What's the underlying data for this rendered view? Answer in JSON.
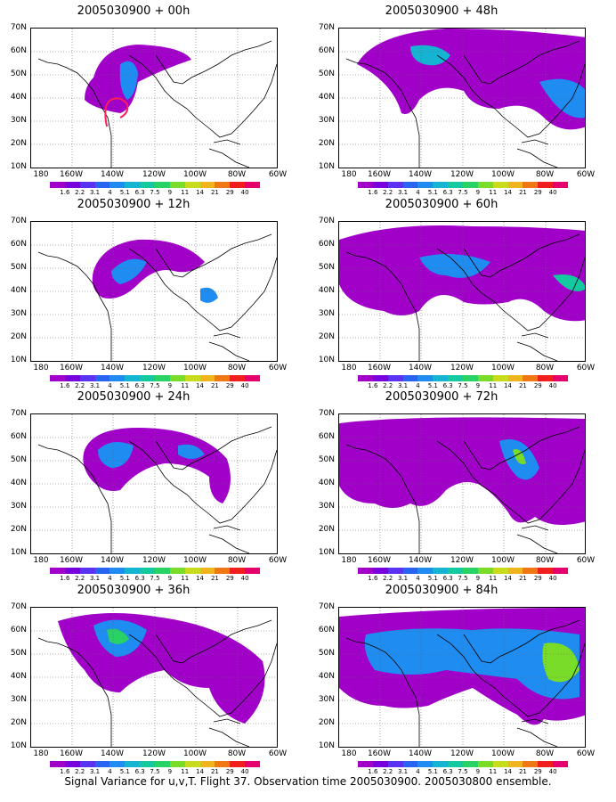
{
  "panels": [
    {
      "title": "2005030900 + 00h"
    },
    {
      "title": "2005030900 + 48h"
    },
    {
      "title": "2005030900 + 12h"
    },
    {
      "title": "2005030900 + 60h"
    },
    {
      "title": "2005030900 + 24h"
    },
    {
      "title": "2005030900 + 72h"
    },
    {
      "title": "2005030900 + 36h"
    },
    {
      "title": "2005030900 + 84h"
    }
  ],
  "lat_labels": [
    "70N",
    "60N",
    "50N",
    "40N",
    "30N",
    "20N",
    "10N"
  ],
  "lon_labels": [
    "180",
    "160W",
    "140W",
    "120W",
    "100W",
    "80W",
    "60W"
  ],
  "colorbar": {
    "labels": [
      "1.6",
      "2.2",
      "3.1",
      "4",
      "5.1",
      "6.3",
      "7.5",
      "9",
      "11",
      "14",
      "21",
      "29",
      "40"
    ],
    "colors": [
      "#a000c8",
      "#7800dc",
      "#5a32f0",
      "#2864f0",
      "#1e8cf0",
      "#14b4d2",
      "#14c8a0",
      "#28d264",
      "#78dc28",
      "#c8dc1e",
      "#f0b41e",
      "#f07814",
      "#f01e1e",
      "#e6006e"
    ]
  },
  "caption": "Signal Variance for u,v,T. Flight 37. Observation time 2005030900. 2005030800 ensemble."
}
